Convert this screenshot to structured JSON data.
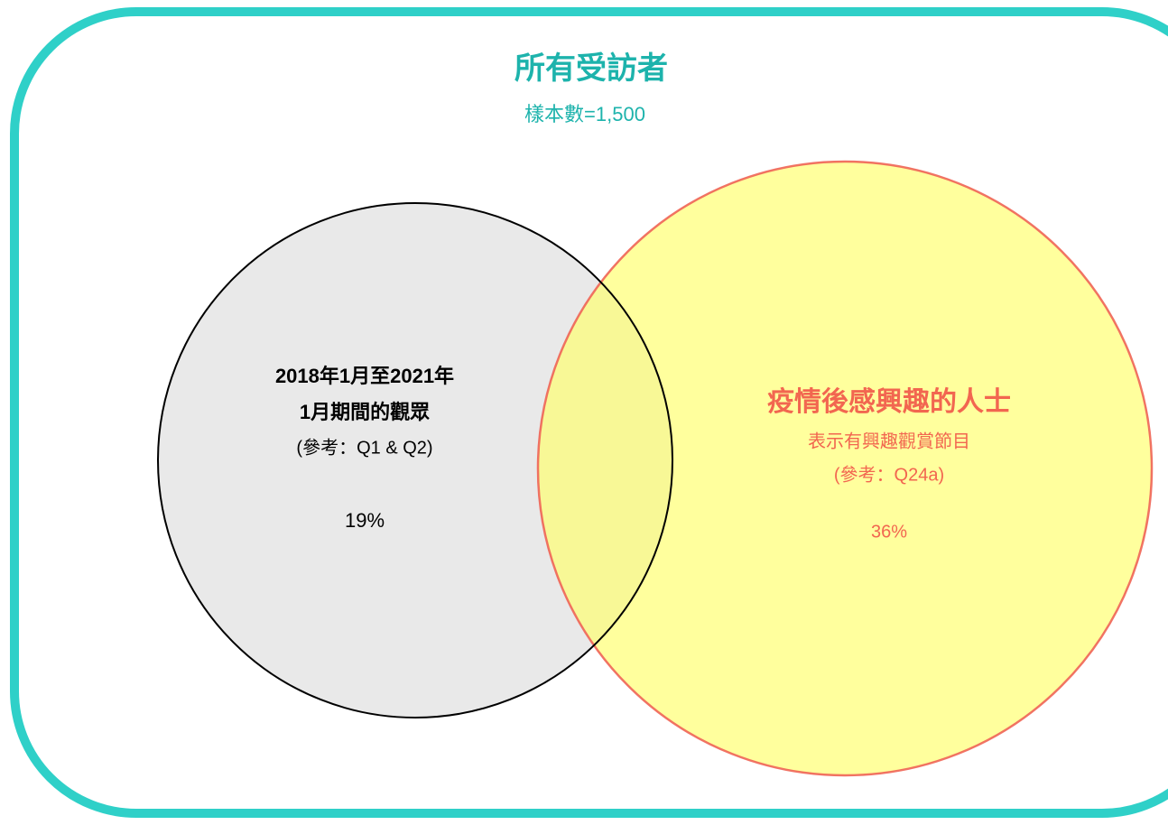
{
  "header": {
    "title": "所有受訪者",
    "subtitle": "樣本數=1,500"
  },
  "sets": [
    {
      "label_lines": [
        "2018年1月至2021年",
        "1月期間的觀眾"
      ],
      "reference": "(參考：Q1 & Q2)",
      "value": "19%"
    },
    {
      "label_lines": [
        "疫情後感興趣的人士",
        "表示有興趣觀賞節目"
      ],
      "reference": "(參考：Q24a)",
      "value": "36%"
    }
  ]
}
